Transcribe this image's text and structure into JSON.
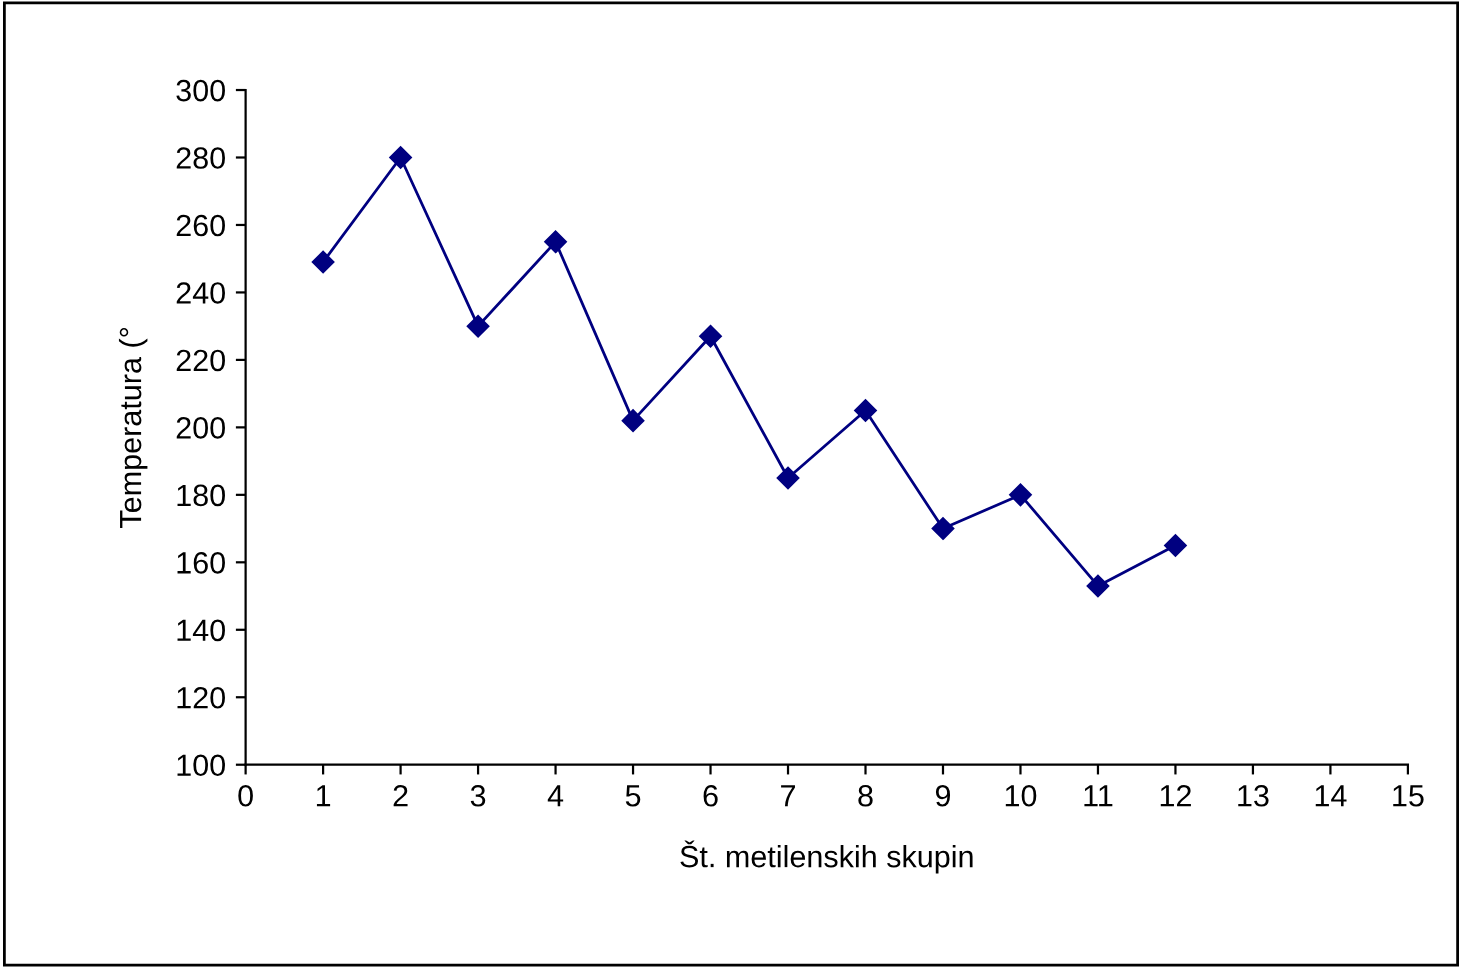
{
  "chart_data": {
    "type": "line",
    "xlabel": "Št. metilenskih skupin",
    "ylabel": "Temperatura (°",
    "x": [
      1,
      2,
      3,
      4,
      5,
      6,
      7,
      8,
      9,
      10,
      11,
      12
    ],
    "series": [
      {
        "color": "#000080",
        "values": [
          249,
          280,
          230,
          255,
          202,
          227,
          185,
          205,
          170,
          180,
          153,
          165
        ]
      }
    ],
    "xlim": [
      0,
      15
    ],
    "xticks": [
      0,
      1,
      2,
      3,
      4,
      5,
      6,
      7,
      8,
      9,
      10,
      11,
      12,
      13,
      14,
      15
    ],
    "ylim": [
      100,
      300
    ],
    "yticks": [
      100,
      120,
      140,
      160,
      180,
      200,
      220,
      240,
      260,
      280,
      300
    ],
    "grid": false,
    "legend": false,
    "marker": "diamond",
    "line_style": "solid"
  }
}
